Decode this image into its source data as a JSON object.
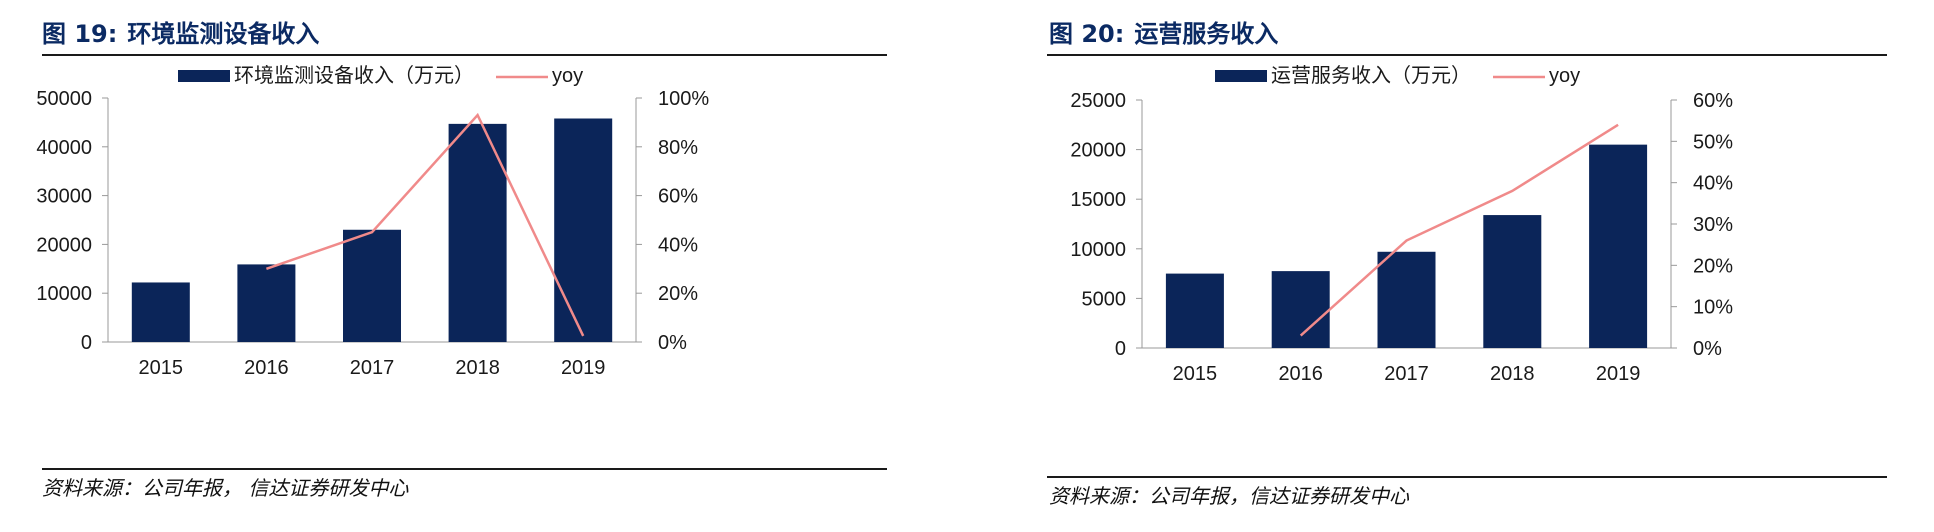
{
  "figures": [
    {
      "fig_label": "图 19:",
      "fig_title": "环境监测设备收入",
      "source": "资料来源：公司年报，  信达证券研发中心"
    },
    {
      "fig_label": "图 20:",
      "fig_title": "运营服务收入",
      "source": "资料来源：公司年报，信达证券研发中心"
    }
  ],
  "colors": {
    "bar": "#0b2559",
    "line": "#f08a8a",
    "title": "#0b2a63"
  },
  "chart_data": [
    {
      "type": "bar",
      "categories": [
        "2015",
        "2016",
        "2017",
        "2018",
        "2019"
      ],
      "series": [
        {
          "name": "环境监测设备收入（万元）",
          "type": "bar",
          "axis": "left",
          "values": [
            12200,
            15900,
            23000,
            44700,
            45800
          ]
        },
        {
          "name": "yoy",
          "type": "line",
          "axis": "right",
          "values": [
            null,
            0.3,
            0.45,
            0.93,
            0.025
          ]
        }
      ],
      "ylim": [
        0,
        50000
      ],
      "yticks": [
        "0",
        "10000",
        "20000",
        "30000",
        "40000",
        "50000"
      ],
      "y2lim": [
        0,
        1.0
      ],
      "y2ticks": [
        "0%",
        "20%",
        "40%",
        "60%",
        "80%",
        "100%"
      ],
      "legend": "top-center",
      "grid": false
    },
    {
      "type": "bar",
      "categories": [
        "2015",
        "2016",
        "2017",
        "2018",
        "2019"
      ],
      "series": [
        {
          "name": "运营服务收入（万元）",
          "type": "bar",
          "axis": "left",
          "values": [
            7500,
            7750,
            9700,
            13400,
            20500
          ]
        },
        {
          "name": "yoy",
          "type": "line",
          "axis": "right",
          "values": [
            null,
            0.03,
            0.26,
            0.38,
            0.54
          ]
        }
      ],
      "ylim": [
        0,
        25000
      ],
      "yticks": [
        "0",
        "5000",
        "10000",
        "15000",
        "20000",
        "25000"
      ],
      "y2lim": [
        0,
        0.6
      ],
      "y2ticks": [
        "0%",
        "10%",
        "20%",
        "30%",
        "40%",
        "50%",
        "60%"
      ],
      "legend": "top-center",
      "grid": false
    }
  ]
}
